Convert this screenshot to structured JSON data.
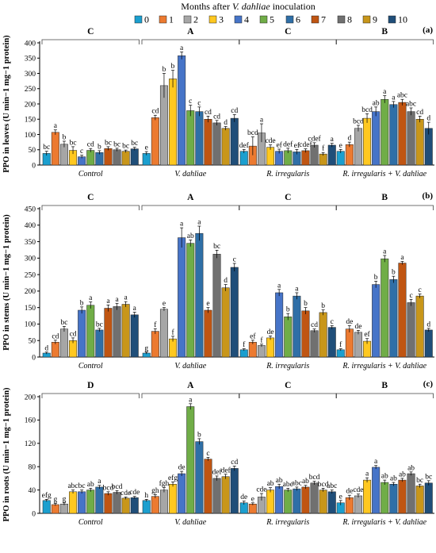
{
  "figure": {
    "title_prefix": "Months after ",
    "title_italic": "V. dahliae",
    "title_suffix": " inoculation"
  },
  "legend": [
    "0",
    "1",
    "2",
    "3",
    "4",
    "5",
    "6",
    "7",
    "8",
    "9",
    "10"
  ],
  "colors": {
    "series": [
      "#1b9fcf",
      "#ec7a30",
      "#a6a6a6",
      "#ffc820",
      "#4674c8",
      "#70ad47",
      "#2f6fa7",
      "#c05512",
      "#707070",
      "#c8961a",
      "#1f4e79"
    ],
    "axis": "#000000",
    "bar_outline": "#222222"
  },
  "chart_data": [
    {
      "type": "bar",
      "panel_label": "(a)",
      "ylabel": "PPO in leaves (U min−1 mg−1 protein)",
      "yticks": [
        "0",
        "50",
        "100",
        "150",
        "200",
        "250",
        "300",
        "350",
        "400"
      ],
      "ylim": [
        0,
        400
      ],
      "categories": [
        "Control",
        "V. dahliae",
        "R. irregularis",
        "R. irregularis + V. dahliae"
      ],
      "group_letters": [
        "C",
        "A",
        "C",
        "B"
      ],
      "values": [
        [
          38,
          107,
          68,
          48,
          27,
          48,
          41,
          54,
          50,
          45,
          53
        ],
        [
          38,
          155,
          260,
          282,
          358,
          178,
          175,
          150,
          138,
          120,
          153
        ],
        [
          45,
          62,
          105,
          58,
          45,
          47,
          43,
          47,
          65,
          36,
          65
        ],
        [
          45,
          67,
          120,
          153,
          175,
          215,
          198,
          205,
          175,
          150,
          120
        ]
      ],
      "errors": [
        [
          7,
          8,
          10,
          12,
          5,
          6,
          6,
          6,
          5,
          4,
          5
        ],
        [
          6,
          8,
          40,
          28,
          12,
          18,
          15,
          10,
          8,
          6,
          12
        ],
        [
          6,
          30,
          30,
          8,
          7,
          8,
          8,
          6,
          8,
          5,
          6
        ],
        [
          6,
          8,
          10,
          15,
          15,
          12,
          10,
          10,
          12,
          10,
          20
        ]
      ],
      "letters": [
        [
          "bc",
          "a",
          "b",
          "bc",
          "c",
          "cd",
          "b",
          "bc",
          "bc",
          "bc",
          "bc"
        ],
        [
          "e",
          "cd",
          "b",
          "b",
          "a",
          "c",
          "c",
          "cd",
          "cd",
          "d",
          "cd"
        ],
        [
          "def",
          "bcd",
          "a",
          "cde",
          "ef",
          "def",
          "ef",
          "cdef",
          "cdef",
          "f",
          "a"
        ],
        [
          "e",
          "d",
          "bcd",
          "bcd",
          "ab",
          "a",
          "a",
          "abc",
          "abc",
          "cd",
          "d"
        ]
      ]
    },
    {
      "type": "bar",
      "panel_label": "(b)",
      "ylabel": "PPO in stems (U min−1 mg−1 protein)",
      "yticks": [
        "0",
        "50",
        "100",
        "150",
        "200",
        "250",
        "300",
        "350",
        "400",
        "450"
      ],
      "ylim": [
        0,
        450
      ],
      "categories": [
        "Control",
        "V. dahliae",
        "R. irregularis",
        "R. irregularis + V. dahliae"
      ],
      "group_letters": [
        "C",
        "A",
        "C",
        "B"
      ],
      "values": [
        [
          12,
          45,
          85,
          50,
          142,
          157,
          82,
          148,
          153,
          160,
          128
        ],
        [
          12,
          78,
          145,
          55,
          362,
          345,
          375,
          142,
          312,
          210,
          272
        ],
        [
          22,
          45,
          35,
          58,
          195,
          122,
          185,
          140,
          80,
          135,
          90
        ],
        [
          22,
          85,
          75,
          48,
          220,
          298,
          235,
          285,
          165,
          185,
          82
        ]
      ],
      "errors": [
        [
          3,
          6,
          8,
          8,
          10,
          10,
          5,
          10,
          10,
          8,
          8
        ],
        [
          3,
          8,
          5,
          8,
          30,
          10,
          22,
          8,
          12,
          10,
          12
        ],
        [
          3,
          6,
          4,
          6,
          10,
          10,
          10,
          10,
          5,
          8,
          5
        ],
        [
          3,
          10,
          6,
          8,
          10,
          10,
          10,
          5,
          10,
          6,
          5
        ]
      ],
      "letters": [
        [
          "d",
          "cd",
          "bc",
          "cd",
          "b",
          "a",
          "bc",
          "a",
          "a",
          "a",
          "a"
        ],
        [
          "g",
          "f",
          "e",
          "f",
          "a",
          "ab",
          "a",
          "e",
          "bc",
          "d",
          "c"
        ],
        [
          "f",
          "ef",
          "f",
          "de",
          "a",
          "b",
          "a",
          "b",
          "cd",
          "b",
          "c"
        ],
        [
          "f",
          "de",
          "de",
          "ef",
          "b",
          "a",
          "b",
          "a",
          "c",
          "c",
          "d"
        ]
      ]
    },
    {
      "type": "bar",
      "panel_label": "(c)",
      "ylabel": "PPO in roots (U min−1 mg−1 protein)",
      "yticks": [
        "0",
        "40",
        "80",
        "120",
        "160",
        "200"
      ],
      "ylim": [
        0,
        200
      ],
      "categories": [
        "Control",
        "V. dahliae",
        "R. irregularis",
        "R. irregularis + V. dahliae"
      ],
      "group_letters": [
        "D",
        "A",
        "C",
        "B"
      ],
      "values": [
        [
          22,
          15,
          16,
          37,
          37,
          40,
          45,
          34,
          36,
          26,
          27
        ],
        [
          22,
          29,
          40,
          50,
          68,
          183,
          123,
          93,
          60,
          63,
          77
        ],
        [
          18,
          16,
          28,
          40,
          46,
          40,
          42,
          45,
          52,
          40,
          37
        ],
        [
          18,
          27,
          30,
          57,
          79,
          53,
          50,
          57,
          68,
          47,
          52
        ]
      ],
      "errors": [
        [
          2,
          2,
          2,
          3,
          3,
          3,
          3,
          3,
          3,
          2,
          2
        ],
        [
          2,
          3,
          4,
          4,
          4,
          5,
          5,
          3,
          4,
          4,
          4
        ],
        [
          3,
          2,
          6,
          4,
          4,
          3,
          3,
          3,
          3,
          3,
          3
        ],
        [
          4,
          4,
          3,
          4,
          3,
          4,
          3,
          3,
          3,
          3,
          4
        ]
      ],
      "letters": [
        [
          "efg",
          "g",
          "g",
          "abc",
          "bc",
          "ab",
          "a",
          "bcd",
          "bcd",
          "cde",
          "cde"
        ],
        [
          "h",
          "gh",
          "fgh",
          "efg",
          "de",
          "a",
          "b",
          "c",
          "def",
          "def",
          "cd"
        ],
        [
          "de",
          "e",
          "cde",
          "ab",
          "ab",
          "abc",
          "abc",
          "ab",
          "bcd",
          "bcd",
          "abc"
        ],
        [
          "e",
          "de",
          "cde",
          "a",
          "a",
          "ab",
          "ab",
          "ab",
          "ab",
          "bc",
          "bc"
        ]
      ]
    }
  ]
}
